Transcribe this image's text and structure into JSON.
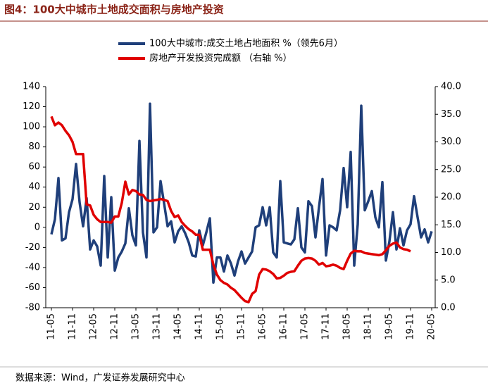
{
  "chart_data": {
    "type": "line",
    "title": "图4：100大中城市土地成交面积与房地产投资",
    "source": "数据来源：Wind，广发证券发展研究中心",
    "categories": [
      "11-05",
      null,
      null,
      null,
      null,
      null,
      "11-11",
      null,
      null,
      null,
      null,
      null,
      "12-05",
      null,
      null,
      null,
      null,
      null,
      "12-11",
      null,
      null,
      null,
      null,
      null,
      "13-05",
      null,
      null,
      null,
      null,
      null,
      "13-11",
      null,
      null,
      null,
      null,
      null,
      "14-05",
      null,
      null,
      null,
      null,
      null,
      "14-11",
      null,
      null,
      null,
      null,
      null,
      "15-05",
      null,
      null,
      null,
      null,
      null,
      "15-11",
      null,
      null,
      null,
      null,
      null,
      "16-05",
      null,
      null,
      null,
      null,
      null,
      "16-11",
      null,
      null,
      null,
      null,
      null,
      "17-05",
      null,
      null,
      null,
      null,
      null,
      "17-11",
      null,
      null,
      null,
      null,
      null,
      "18-05",
      null,
      null,
      null,
      null,
      null,
      "18-11",
      null,
      null,
      null,
      null,
      null,
      "19-05",
      null,
      null,
      null,
      null,
      null,
      "19-11",
      null,
      null,
      null,
      null,
      null,
      "20-05"
    ],
    "series": [
      {
        "name": "100大中城市:成交土地占地面积 %（领先6月）",
        "color": "#1f3f7a",
        "axis": "y",
        "values": [
          -7,
          8,
          49,
          -13,
          -11,
          15,
          28,
          63,
          25,
          1,
          29,
          -22,
          -13,
          -19,
          -38,
          51,
          -30,
          30,
          -43,
          -30,
          -24,
          -16,
          19,
          -8,
          -18,
          86,
          -5,
          -30,
          123,
          -5,
          0,
          46,
          24,
          1,
          6,
          -15,
          -4,
          1,
          -6,
          -15,
          -28,
          -29,
          -3,
          -18,
          -5,
          9,
          -55,
          -30,
          -30,
          -44,
          -28,
          -36,
          -48,
          -34,
          -24,
          -36,
          -30,
          -24,
          0,
          2,
          20,
          2,
          20,
          -25,
          -30,
          46,
          -15,
          -16,
          -17,
          -12,
          19,
          -20,
          -25,
          26,
          21,
          -10,
          20,
          48,
          -28,
          2,
          0,
          -3,
          17,
          59,
          20,
          75,
          -38,
          3,
          121,
          17,
          26,
          36,
          10,
          0,
          45,
          -33,
          -14,
          15,
          -22,
          -1,
          -18,
          -3,
          3,
          31,
          10,
          -10,
          -2,
          -15,
          -4
        ]
      },
      {
        "name": "房地产开发投资完成额 （右轴 %）",
        "color": "#e00000",
        "axis": "y2",
        "values": [
          34.6,
          33,
          33.5,
          33,
          32,
          31.2,
          30,
          27.8,
          27.8,
          27.8,
          18.7,
          18.5,
          16.8,
          16,
          15.5,
          15.5,
          15.5,
          15.4,
          16.5,
          16.5,
          19,
          22.8,
          20.5,
          21.3,
          21.1,
          20.5,
          20.4,
          19.5,
          19.3,
          19.4,
          19.5,
          19.7,
          19.5,
          19.3,
          17.5,
          16.4,
          16.7,
          15.5,
          14.8,
          14.2,
          13.8,
          13.2,
          13.2,
          10.5,
          10.5,
          10.5,
          7.8,
          6,
          5,
          4.5,
          4.2,
          3.6,
          3.2,
          2.5,
          1.8,
          1.2,
          1,
          2.5,
          3,
          6,
          7,
          6.9,
          6.6,
          6.1,
          5.3,
          5.4,
          5.8,
          6.3,
          6.5,
          6.6,
          7.6,
          8.5,
          8.9,
          9,
          8.9,
          8.5,
          7.8,
          8.1,
          7.5,
          7.6,
          7.8,
          7.6,
          7.2,
          7,
          8.5,
          9.8,
          10.3,
          10.2,
          10.2,
          9.9,
          9.8,
          9.7,
          9.6,
          9.5,
          9.7,
          10.4,
          11.2,
          11.6,
          11.8,
          10.9,
          10.6,
          10.5,
          10.2,
          null,
          null,
          null,
          null,
          null,
          null
        ]
      }
    ],
    "ylim": [
      -80,
      140
    ],
    "yticks": [
      -80,
      -60,
      -40,
      -20,
      0,
      20,
      40,
      60,
      80,
      100,
      120,
      140
    ],
    "y2lim": [
      0,
      40
    ],
    "y2ticks": [
      {
        "value": 0,
        "label": "0.0"
      },
      {
        "value": 5,
        "label": "5.0"
      },
      {
        "value": 10,
        "label": "10.0"
      },
      {
        "value": 15,
        "label": "15.0"
      },
      {
        "value": 20,
        "label": "20.0"
      },
      {
        "value": 25,
        "label": "25.0"
      },
      {
        "value": 30,
        "label": "30.0"
      },
      {
        "value": 35,
        "label": "35.0"
      },
      {
        "value": 40,
        "label": "40.0"
      }
    ],
    "grid": false
  }
}
